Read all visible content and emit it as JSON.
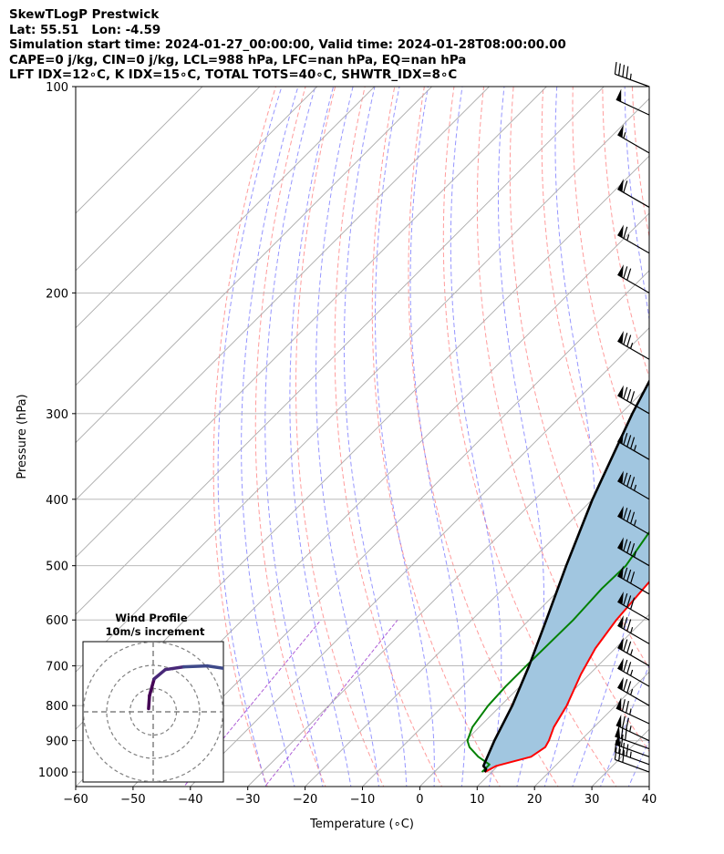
{
  "header": {
    "line1": "SkewTLogP Prestwick",
    "line2": "Lat: 55.51   Lon: -4.59",
    "line3": "Simulation start time: 2024-01-27_00:00:00, Valid time: 2024-01-28T08:00:00.00",
    "line4": "CAPE=0 j/kg, CIN=0 j/kg, LCL=988 hPa, LFC=nan hPa, EQ=nan hPa",
    "line5": "LFT IDX=12∘C, K IDX=15∘C, TOTAL TOTS=40∘C, SHWTR_IDX=8∘C"
  },
  "colors": {
    "temperature": "#ff0000",
    "dewpoint": "#008000",
    "parcel": "#000000",
    "shade": "#a1c6e0",
    "isotherm": "#aaaaaa",
    "dry_adiabat": "#ff5a5a",
    "moist_adiabat": "#5050ff",
    "mixing_ratio": "#9933cc",
    "grid": "#b0b0b0"
  },
  "chart_data": [
    {
      "type": "line",
      "subtype": "skew-T log-P",
      "xlabel": "Temperature (∘C)",
      "ylabel": "Pressure (hPa)",
      "xlim": [
        -60,
        40
      ],
      "ylim": [
        1050,
        100
      ],
      "y_scale": "log",
      "grid": true,
      "x_ticks": [
        "−60",
        "−50",
        "−40",
        "−30",
        "−20",
        "−10",
        "0",
        "10",
        "20",
        "30",
        "40"
      ],
      "y_ticks": [
        "100",
        "200",
        "300",
        "400",
        "500",
        "600",
        "700",
        "800",
        "900",
        "1000"
      ],
      "series": [
        {
          "name": "Temperature",
          "points": [
            [
              8.8,
              1000
            ],
            [
              9.7,
              980
            ],
            [
              14.2,
              950
            ],
            [
              15,
              920
            ],
            [
              14.5,
              900
            ],
            [
              13,
              860
            ],
            [
              11.5,
              800
            ],
            [
              8.5,
              720
            ],
            [
              6.5,
              660
            ],
            [
              5.2,
              600
            ],
            [
              4.2,
              520
            ],
            [
              3.5,
              500
            ],
            [
              1,
              430
            ],
            [
              -2,
              370
            ],
            [
              -5,
              330
            ],
            [
              -8,
              300
            ],
            [
              -14,
              250
            ],
            [
              -17,
              215
            ],
            [
              -17.5,
              200
            ],
            [
              -15.5,
              187
            ],
            [
              -13,
              170
            ],
            [
              -13,
              160
            ],
            [
              -13,
              150
            ],
            [
              -13.5,
              140
            ],
            [
              -12.5,
              130
            ],
            [
              -11,
              120
            ],
            [
              -8.5,
              110
            ],
            [
              -6.5,
              100
            ]
          ]
        },
        {
          "name": "Dewpoint",
          "points": [
            [
              8.3,
              1000
            ],
            [
              8.3,
              975
            ],
            [
              5,
              950
            ],
            [
              1.8,
              920
            ],
            [
              0.3,
              900
            ],
            [
              -1.2,
              860
            ],
            [
              -2.2,
              800
            ],
            [
              -2.5,
              750
            ],
            [
              -2.5,
              700
            ],
            [
              -2.3,
              600
            ],
            [
              -2.8,
              540
            ],
            [
              -2.6,
              500
            ],
            [
              -4.6,
              440
            ],
            [
              -8.5,
              390
            ],
            [
              -12,
              350
            ],
            [
              -17.5,
              320
            ],
            [
              -19.5,
              305
            ],
            [
              -22.5,
              270
            ],
            [
              -25.5,
              235
            ],
            [
              -28.5,
              206
            ],
            [
              -29,
              200
            ],
            [
              -28.5,
              190
            ],
            [
              -27,
              180
            ],
            [
              -25.5,
              170
            ],
            [
              -23,
              160
            ],
            [
              -22,
              150
            ],
            [
              -24,
              140
            ],
            [
              -25,
              130
            ],
            [
              -24.5,
              120
            ],
            [
              -23,
              110
            ],
            [
              -21.5,
              100
            ]
          ]
        },
        {
          "name": "Parcel",
          "points": [
            [
              8.8,
              1000
            ],
            [
              8.5,
              990
            ],
            [
              7.5,
              980
            ],
            [
              5,
              900
            ],
            [
              2,
              800
            ],
            [
              -2,
              700
            ],
            [
              -7,
              600
            ],
            [
              -13,
              500
            ],
            [
              -20,
              400
            ],
            [
              -28,
              300
            ],
            [
              -38,
              200
            ],
            [
              -46,
              150
            ],
            [
              -55,
              110
            ],
            [
              -57,
              100
            ]
          ]
        }
      ],
      "wind_barbs": {
        "pressures": [
          1000,
          975,
          950,
          925,
          900,
          850,
          800,
          750,
          700,
          650,
          600,
          550,
          500,
          450,
          400,
          350,
          300,
          250,
          200,
          175,
          150,
          125,
          110,
          100
        ],
        "speed_kt": [
          30,
          45,
          60,
          70,
          75,
          75,
          75,
          75,
          75,
          75,
          80,
          80,
          85,
          85,
          85,
          85,
          80,
          75,
          70,
          65,
          60,
          55,
          50,
          45
        ],
        "direction_deg": [
          250,
          250,
          250,
          250,
          245,
          245,
          240,
          240,
          240,
          240,
          240,
          240,
          240,
          240,
          240,
          240,
          240,
          240,
          240,
          240,
          240,
          240,
          245,
          250
        ]
      }
    },
    {
      "type": "line",
      "subtype": "hodograph",
      "title": "Wind Profile",
      "subtitle": "10m/s increment",
      "rings": [
        10,
        20,
        30
      ],
      "points": [
        [
          10,
          -15
        ],
        [
          10,
          -5
        ],
        [
          11,
          0
        ],
        [
          10,
          4
        ],
        [
          9,
          8
        ],
        [
          7,
          12
        ],
        [
          6,
          15
        ],
        [
          4,
          17
        ],
        [
          1,
          18
        ],
        [
          -3,
          18
        ],
        [
          -8,
          17
        ],
        [
          -14,
          16
        ],
        [
          -18,
          13
        ],
        [
          -20,
          12
        ],
        [
          -20,
          8
        ],
        [
          -20,
          3
        ],
        [
          -20,
          -2
        ],
        [
          -16,
          -6
        ],
        [
          -13,
          -8
        ],
        [
          -7,
          -10
        ],
        [
          -2,
          -11
        ]
      ],
      "colormap": "viridis"
    }
  ]
}
